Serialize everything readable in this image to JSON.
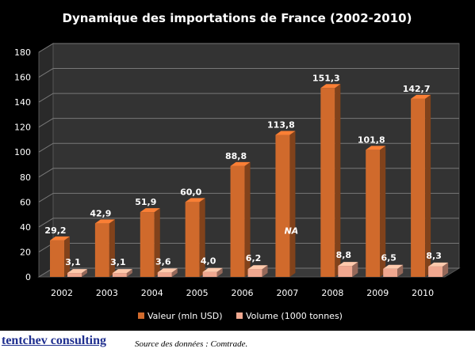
{
  "chart_data": {
    "type": "bar",
    "title": "Dynamique des importations de France (2002-2010)",
    "categories": [
      "2002",
      "2003",
      "2004",
      "2005",
      "2006",
      "2007",
      "2008",
      "2009",
      "2010"
    ],
    "series": [
      {
        "name": "Valeur (mln USD)",
        "values": [
          29.2,
          42.9,
          51.9,
          60.0,
          88.8,
          113.8,
          151.3,
          101.8,
          142.7
        ],
        "labels": [
          "29,2",
          "42,9",
          "51,9",
          "60,0",
          "88,8",
          "113,8",
          "151,3",
          "101,8",
          "142,7"
        ],
        "color": "#d06a2c"
      },
      {
        "name": "Volume (1000 tonnes)",
        "values": [
          3.1,
          3.1,
          3.6,
          4.0,
          6.2,
          null,
          8.8,
          6.5,
          8.3
        ],
        "labels": [
          "3,1",
          "3,1",
          "3,6",
          "4,0",
          "6,2",
          "NA",
          "8,8",
          "6,5",
          "8,3"
        ],
        "color": "#f0a890"
      }
    ],
    "yticks": [
      "0",
      "20",
      "40",
      "60",
      "80",
      "100",
      "120",
      "140",
      "160",
      "180"
    ],
    "ylim": [
      0,
      180
    ],
    "grid": true,
    "legend": "bottom",
    "background": "#000000",
    "text_color": "#ffffff"
  },
  "footer": {
    "brand": "tentchev consulting",
    "source": "Source des données : Comtrade."
  }
}
